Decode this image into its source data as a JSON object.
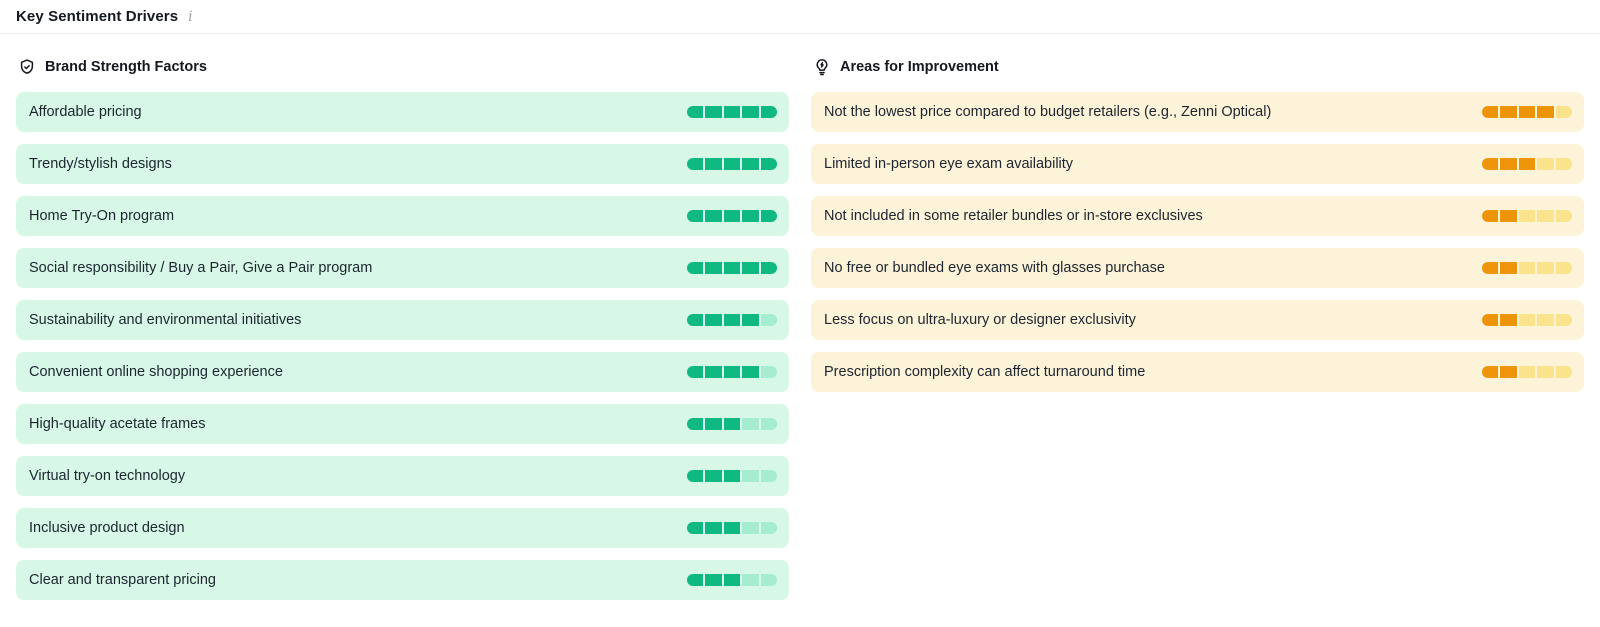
{
  "header": {
    "title": "Key Sentiment Drivers",
    "info_icon": "i"
  },
  "columns": {
    "strengths": {
      "title": "Brand Strength Factors",
      "icon": "shield-check-icon",
      "max_score": 5,
      "colors": {
        "row_bg": "#d7f8e6",
        "bar_filled": "#10b981",
        "bar_empty": "#a5ecd0"
      },
      "items": [
        {
          "label": "Affordable pricing",
          "score": 5
        },
        {
          "label": "Trendy/stylish designs",
          "score": 5
        },
        {
          "label": "Home Try-On program",
          "score": 5
        },
        {
          "label": "Social responsibility / Buy a Pair, Give a Pair program",
          "score": 5
        },
        {
          "label": "Sustainability and environmental initiatives",
          "score": 4
        },
        {
          "label": "Convenient online shopping experience",
          "score": 4
        },
        {
          "label": "High-quality acetate frames",
          "score": 3
        },
        {
          "label": "Virtual try-on technology",
          "score": 3
        },
        {
          "label": "Inclusive product design",
          "score": 3
        },
        {
          "label": "Clear and transparent pricing",
          "score": 3
        }
      ]
    },
    "improvements": {
      "title": "Areas for Improvement",
      "icon": "lightbulb-bolt-icon",
      "max_score": 5,
      "colors": {
        "row_bg": "#fdf3d8",
        "bar_filled": "#ee9408",
        "bar_empty": "#fbe38b"
      },
      "items": [
        {
          "label": "Not the lowest price compared to budget retailers (e.g., Zenni Optical)",
          "score": 4
        },
        {
          "label": "Limited in-person eye exam availability",
          "score": 3
        },
        {
          "label": "Not included in some retailer bundles or in-store exclusives",
          "score": 2
        },
        {
          "label": "No free or bundled eye exams with glasses purchase",
          "score": 2
        },
        {
          "label": "Less focus on ultra-luxury or designer exclusivity",
          "score": 2
        },
        {
          "label": "Prescription complexity can affect turnaround time",
          "score": 2
        }
      ]
    }
  }
}
